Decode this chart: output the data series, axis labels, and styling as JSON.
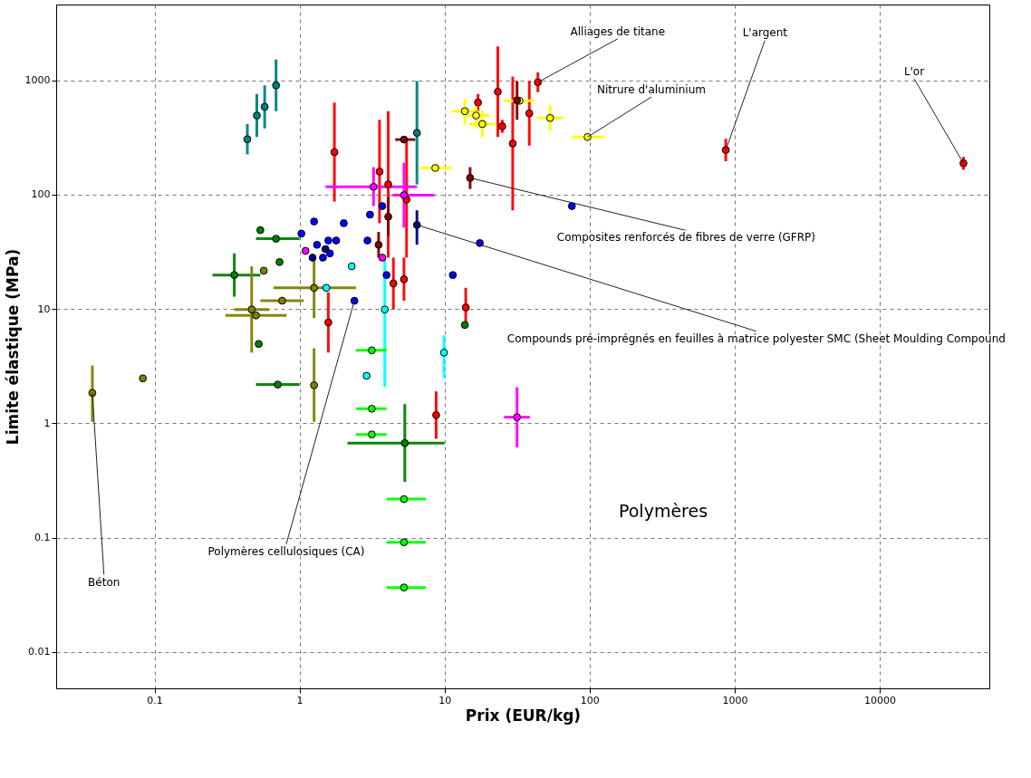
{
  "chart_data": {
    "type": "scatter",
    "xlabel": "Prix (EUR/kg)",
    "ylabel": "Limite élastique (MPa)",
    "xlim": [
      0.021,
      57000
    ],
    "ylim": [
      0.0048,
      4600
    ],
    "log": "xy",
    "grid": true,
    "marker": "circle",
    "xticks": [
      0.1,
      1,
      10,
      100,
      1000,
      10000
    ],
    "yticks": [
      0.01,
      0.1,
      1,
      10,
      100,
      1000
    ],
    "series": [
      {
        "color": "#ff0000",
        "x": [
          1.74,
          3.56,
          4.09,
          5.47,
          23.3,
          29.5,
          38.4,
          44.0,
          869,
          37800,
          1.58,
          4.44,
          14.0,
          8.75,
          17.0,
          25.0,
          5.25
        ],
        "values": [
          235,
          159,
          123,
          90.6,
          794,
          280,
          514,
          961,
          246,
          188,
          7.63,
          16.7,
          10.3,
          1.18,
          639,
          396,
          18.2
        ],
        "errors": [
          [
            86.7,
            639
          ],
          [
            56.2,
            451
          ],
          [
            28.1,
            537
          ],
          [
            28.1,
            292
          ],
          [
            319,
            1977
          ],
          [
            72.9,
            1076
          ],
          [
            268,
            986
          ],
          [
            787,
            1173
          ],
          [
            196,
            308
          ],
          [
            165,
            214
          ],
          [
            4.15,
            14.0
          ],
          [
            9.89,
            28.1
          ],
          [
            7.0,
            15.3
          ],
          [
            0.731,
            1.9
          ],
          [
            537,
            760
          ],
          [
            347,
            451
          ],
          [
            11.8,
            28.1
          ]
        ]
      },
      {
        "color": "#800000",
        "x": [
          31.6,
          15.0,
          5.25,
          4.09,
          3.51
        ],
        "values": [
          667,
          140,
          303,
          64,
          36.4
        ],
        "errors": [
          [
            451,
            986
          ],
          [
            112,
            174
          ],
          null,
          [
            43.3,
            94.6
          ],
          [
            28.1,
            47.2
          ]
        ],
        "xerrors": [
          null,
          null,
          [
            4.57,
            6.28
          ],
          null,
          null
        ]
      },
      {
        "color": "#ffff00",
        "x": [
          16.5,
          13.8,
          18.2,
          53.4,
          32.9,
          96.8,
          8.63
        ],
        "values": [
          492,
          537,
          414,
          468,
          662,
          319,
          171
        ],
        "errors": [
          [
            378,
            640
          ],
          [
            413,
            698
          ],
          [
            318,
            538
          ],
          [
            360,
            608
          ],
          [
            607,
            722
          ],
          [
            293,
            348
          ],
          [
            157,
            186
          ]
        ],
        "xerrors": [
          [
            13.4,
            20.3
          ],
          [
            11.2,
            17.0
          ],
          [
            14.8,
            22.4
          ],
          [
            43.4,
            65.7
          ],
          [
            25.7,
            41.7
          ],
          [
            75.5,
            126
          ],
          [
            6.73,
            11.2
          ]
        ]
      },
      {
        "color": "#008080",
        "x": [
          0.437,
          0.508,
          0.575,
          0.689,
          6.45
        ],
        "values": [
          305,
          492,
          586,
          903,
          347
        ],
        "errors": [
          [
            225,
            414
          ],
          [
            319,
            760
          ],
          [
            379,
            903
          ],
          [
            537,
            1523
          ],
          [
            123,
            986
          ]
        ]
      },
      {
        "color": "#ff00ff",
        "x": [
          3.24,
          5.25,
          1.1,
          31.6,
          3.72
        ],
        "values": [
          117,
          98.9,
          32.2,
          1.13,
          28.1
        ],
        "errors": [
          [
            79.4,
            174
          ],
          [
            51.5,
            190
          ],
          null,
          [
            0.615,
            2.07
          ],
          null
        ],
        "xerrors": [
          [
            1.51,
            6.45
          ],
          [
            4.38,
            8.5
          ],
          null,
          [
            25.7,
            38.8
          ],
          null
        ]
      },
      {
        "color": "#0000ff",
        "x": [
          1.03,
          1.26,
          1.32,
          1.45,
          1.79,
          1.62,
          2.02,
          2.39,
          3.72,
          2.94,
          3.98,
          11.4,
          17.5,
          75.5,
          3.06,
          1.58
        ],
        "values": [
          45.6,
          58.2,
          36.4,
          28.1,
          39.7,
          30.6,
          56.2,
          11.8,
          79.4,
          39.7,
          19.8,
          19.8,
          37.7,
          79.4,
          66.8,
          39.7
        ]
      },
      {
        "color": "#000080",
        "x": [
          6.45,
          1.51,
          1.23
        ],
        "values": [
          54.3,
          33.4,
          28.1
        ],
        "errors": [
          [
            36.4,
            72.9
          ],
          null,
          null
        ]
      },
      {
        "color": "#00ffff",
        "x": [
          1.53,
          2.29,
          3.87,
          2.9,
          9.91
        ],
        "values": [
          15.3,
          23.6,
          9.89,
          2.6,
          4.15
        ],
        "errors": [
          null,
          null,
          [
            2.07,
            28.1
          ],
          null,
          [
            2.47,
            5.87
          ]
        ]
      },
      {
        "color": "#008000",
        "x": [
          0.728,
          0.689,
          0.355,
          0.708,
          0.537,
          0.523,
          5.32,
          13.8
        ],
        "values": [
          25.7,
          41.1,
          19.8,
          2.18,
          48.9,
          4.94,
          0.671,
          7.24
        ],
        "errors": [
          null,
          null,
          [
            12.8,
            30.6
          ],
          null,
          null,
          null,
          [
            0.307,
            1.47
          ],
          null
        ],
        "xerrors": [
          null,
          [
            0.501,
            1.0
          ],
          [
            0.251,
            0.537
          ],
          [
            0.501,
            1.0
          ],
          null,
          null,
          [
            2.14,
            10.0
          ],
          null
        ]
      },
      {
        "color": "#808000",
        "x": [
          0.0373,
          0.0832,
          1.26,
          0.468,
          0.501,
          0.567,
          1.26,
          0.759
        ],
        "values": [
          1.84,
          2.47,
          2.15,
          9.89,
          8.77,
          21.6,
          15.3,
          11.8
        ],
        "errors": [
          [
            1.03,
            3.2
          ],
          null,
          [
            1.03,
            4.53
          ],
          [
            4.15,
            23.6
          ],
          null,
          null,
          [
            8.32,
            28.1
          ],
          null
        ],
        "xerrors": [
          null,
          null,
          null,
          [
            0.355,
            0.617
          ],
          [
            0.309,
            0.813
          ],
          null,
          [
            0.661,
            2.45
          ],
          [
            0.537,
            1.07
          ]
        ]
      },
      {
        "color": "#00ff00",
        "x": [
          3.15,
          3.15,
          3.15,
          5.25,
          5.25,
          5.25
        ],
        "values": [
          4.34,
          1.34,
          0.798,
          0.217,
          0.091,
          0.0366
        ],
        "xerrors": [
          [
            2.45,
            3.98
          ],
          [
            2.45,
            3.98
          ],
          [
            2.45,
            3.98
          ],
          [
            3.98,
            7.42
          ],
          [
            3.98,
            7.42
          ],
          [
            3.98,
            7.42
          ]
        ]
      }
    ],
    "annotations": [
      {
        "text": "Alliages de titane",
        "x": 44.0,
        "y": 961
      },
      {
        "text": "L'argent",
        "x": 869,
        "y": 246
      },
      {
        "text": "L'or",
        "x": 37800,
        "y": 188
      },
      {
        "text": "Nitrure d'aluminium",
        "x": 96.8,
        "y": 319
      },
      {
        "text": "Composites renforcés de fibres de verre (GFRP)",
        "x": 15.0,
        "y": 140
      },
      {
        "text": "Compounds pré-imprégnés en feuilles à matrice polyester SMC (Sheet Moulding Compound",
        "x": 6.45,
        "y": 54.3
      },
      {
        "text": "Polymères cellulosiques (CA)",
        "x": 2.39,
        "y": 11.8
      },
      {
        "text": "Béton",
        "x": 0.0373,
        "y": 1.84
      },
      "Polymères"
    ]
  }
}
